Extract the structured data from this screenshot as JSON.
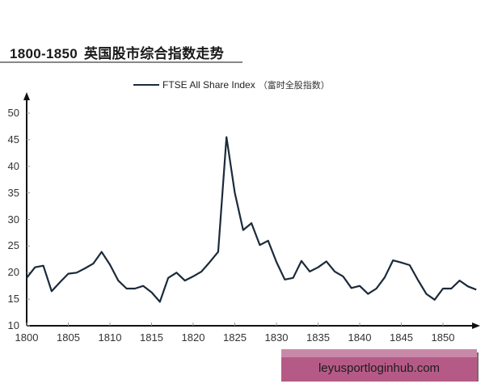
{
  "title": {
    "range": "1800-1850",
    "text": "英国股市综合指数走势"
  },
  "legend": {
    "label": "FTSE All Share Index",
    "label_cn": "（富时全股指数）",
    "color": "#1b2a3a"
  },
  "watermark": "leyusportloginhub.com",
  "chart_data": {
    "type": "line",
    "title": "1800-1850 英国股市综合指数走势",
    "xlabel": "",
    "ylabel": "",
    "ylim": [
      10,
      52
    ],
    "xlim": [
      1800,
      1855
    ],
    "grid": false,
    "legend_position": "top",
    "y_ticks": [
      "10",
      "15",
      "20",
      "25",
      "30",
      "35",
      "40",
      "45",
      "50"
    ],
    "x_ticks": [
      "1800",
      "1805",
      "1810",
      "1815",
      "1820",
      "1825",
      "1830",
      "1835",
      "1840",
      "1845",
      "1850"
    ],
    "series": [
      {
        "name": "FTSE All Share Index（富时全股指数）",
        "color": "#1b2a3a",
        "x": [
          1800,
          1801,
          1802,
          1803,
          1804,
          1805,
          1806,
          1807,
          1808,
          1809,
          1810,
          1811,
          1812,
          1813,
          1814,
          1815,
          1816,
          1817,
          1818,
          1819,
          1820,
          1821,
          1822,
          1823,
          1824,
          1825,
          1826,
          1827,
          1828,
          1829,
          1830,
          1831,
          1832,
          1833,
          1834,
          1835,
          1836,
          1837,
          1838,
          1839,
          1840,
          1841,
          1842,
          1843,
          1844,
          1845,
          1846,
          1847,
          1848,
          1849,
          1850,
          1851,
          1852,
          1853,
          1854
        ],
        "values": [
          19.0,
          21.0,
          21.3,
          16.5,
          18.2,
          19.8,
          20.0,
          20.8,
          21.7,
          23.9,
          21.5,
          18.5,
          17.0,
          17.0,
          17.5,
          16.3,
          14.5,
          19.0,
          20.0,
          18.5,
          19.3,
          20.2,
          22.0,
          23.9,
          45.5,
          35.0,
          28.0,
          29.3,
          25.2,
          26.0,
          22.0,
          18.7,
          19.0,
          22.2,
          20.2,
          21.0,
          22.1,
          20.2,
          19.3,
          17.1,
          17.5,
          16.0,
          17.0,
          19.1,
          22.3,
          21.9,
          21.4,
          18.6,
          16.0,
          14.9,
          17.0,
          17.0,
          18.5,
          17.4,
          16.8
        ]
      }
    ]
  }
}
